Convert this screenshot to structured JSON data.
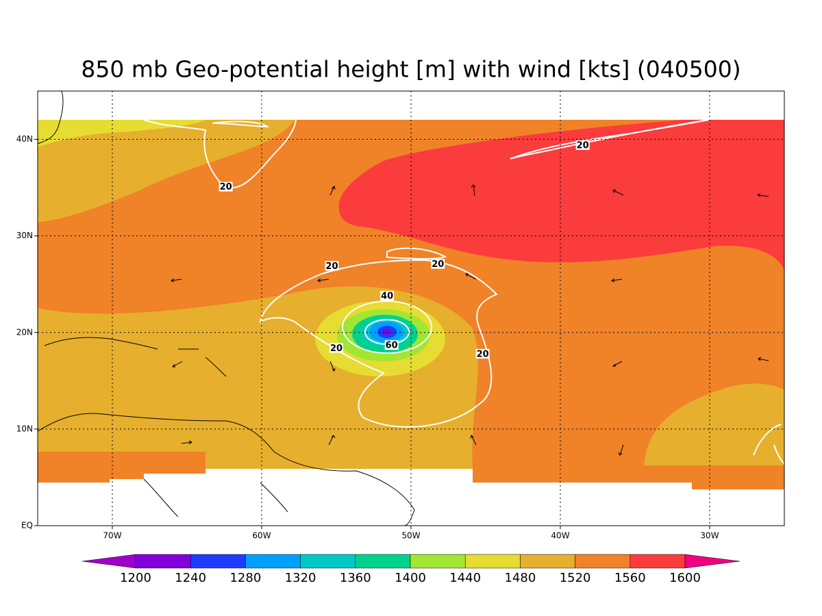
{
  "chart_data": {
    "type": "map",
    "title": "850 mb Geo-potential height [m] with wind [kts] (040500)",
    "xlim": [
      -75,
      -25
    ],
    "ylim": [
      0,
      45
    ],
    "xticks": [
      {
        "value": -70,
        "label": "70W"
      },
      {
        "value": -60,
        "label": "60W"
      },
      {
        "value": -50,
        "label": "50W"
      },
      {
        "value": -40,
        "label": "40W"
      },
      {
        "value": -30,
        "label": "30W"
      }
    ],
    "yticks": [
      {
        "value": 0,
        "label": "EQ"
      },
      {
        "value": 10,
        "label": "10N"
      },
      {
        "value": 20,
        "label": "20N"
      },
      {
        "value": 30,
        "label": "30N"
      },
      {
        "value": 40,
        "label": "40N"
      }
    ],
    "grid": true,
    "colorbar": {
      "levels": [
        1200,
        1240,
        1280,
        1320,
        1360,
        1400,
        1440,
        1480,
        1520,
        1560,
        1600
      ],
      "colors": [
        "#a000c8",
        "#8200dc",
        "#1e3cff",
        "#00a0ff",
        "#00c8c8",
        "#00d28c",
        "#a0e632",
        "#e6dc32",
        "#e6af2d",
        "#f08228",
        "#fa3c3c",
        "#f00082"
      ]
    },
    "contour_labels": [
      {
        "value": 20,
        "lon": -62.4,
        "lat": 35.1
      },
      {
        "value": 20,
        "lon": -55.3,
        "lat": 26.9
      },
      {
        "value": 20,
        "lon": -48.2,
        "lat": 27.1
      },
      {
        "value": 20,
        "lon": -55.0,
        "lat": 18.4
      },
      {
        "value": 20,
        "lon": -45.2,
        "lat": 17.8
      },
      {
        "value": 20,
        "lon": -38.5,
        "lat": 39.4
      },
      {
        "value": 40,
        "lon": -51.6,
        "lat": 23.8
      },
      {
        "value": 60,
        "lon": -51.3,
        "lat": 18.7
      }
    ]
  }
}
